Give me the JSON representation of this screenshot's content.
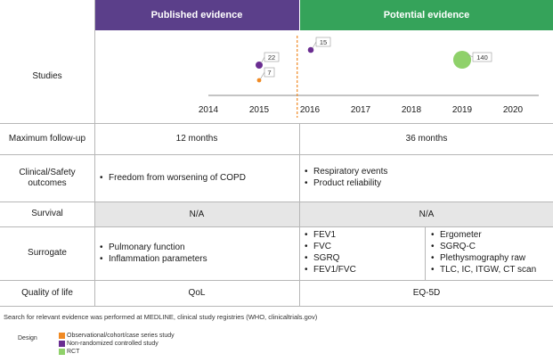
{
  "headers": {
    "published": "Published evidence",
    "potential": "Potential evidence"
  },
  "rows": {
    "studies": "Studies",
    "followup": "Maximum follow-up",
    "clinical": "Clinical/Safety outcomes",
    "survival": "Survival",
    "surrogate": "Surrogate",
    "qol": "Quality of life"
  },
  "chart_data": {
    "type": "scatter",
    "x_ticks": [
      "2014",
      "2015",
      "2016",
      "2017",
      "2018",
      "2019",
      "2020"
    ],
    "divider_year": 2015.75,
    "points": [
      {
        "year": 2015,
        "count": 22,
        "design": "Non-randomized controlled study",
        "label": "22"
      },
      {
        "year": 2015,
        "count": 7,
        "design": "Observational/cohort/case series study",
        "label": "7"
      },
      {
        "year": 2016,
        "count": 15,
        "design": "Non-randomized controlled study",
        "label": "15"
      },
      {
        "year": 2019,
        "count": 140,
        "design": "RCT",
        "label": "140"
      }
    ],
    "colors": {
      "Observational/cohort/case series study": "#f08a24",
      "Non-randomized controlled study": "#6a2d91",
      "RCT": "#8fd16a"
    }
  },
  "followup": {
    "published": "12 months",
    "potential": "36 months"
  },
  "clinical": {
    "published": [
      "Freedom from worsening of COPD"
    ],
    "potential": [
      "Respiratory events",
      "Product reliability"
    ]
  },
  "survival": {
    "published": "N/A",
    "potential": "N/A"
  },
  "surrogate": {
    "published": [
      "Pulmonary function",
      "Inflammation parameters"
    ],
    "potential_left": [
      "FEV1",
      "FVC",
      "SGRQ",
      "FEV1/FVC"
    ],
    "potential_right": [
      "Ergometer",
      "SGRQ-C",
      "Plethysmography raw",
      "TLC, IC, ITGW, CT scan"
    ]
  },
  "qol": {
    "published": "QoL",
    "potential": "EQ-5D"
  },
  "footnote": "Search for relevant evidence was performed at MEDLINE, clinical study registries (WHO, clinicaltrials.gov)",
  "legend": {
    "title": "Design",
    "items": [
      {
        "label": "Observational/cohort/case series study",
        "color": "#f08a24"
      },
      {
        "label": "Non-randomized controlled study",
        "color": "#6a2d91"
      },
      {
        "label": "RCT",
        "color": "#8fd16a"
      }
    ]
  }
}
